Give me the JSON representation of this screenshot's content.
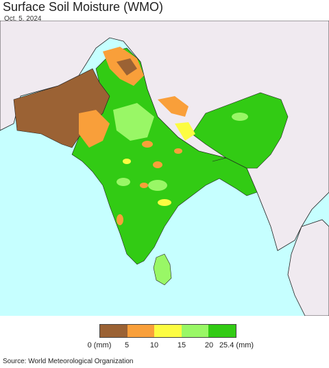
{
  "title": "Surface Soil Moisture (WMO)",
  "date": "Oct. 5, 2024",
  "source": "Source: World Meteorological Organization",
  "legend": {
    "colors": [
      "#9b6234",
      "#f99f3a",
      "#fcfc41",
      "#99f766",
      "#32cb14"
    ],
    "ticks": [
      "0 (mm)",
      "5",
      "10",
      "15",
      "20",
      "25.4 (mm)"
    ]
  },
  "map_colors": {
    "ocean": "#c6ffff",
    "land_outside": "#f0eaf0",
    "border": "#222222"
  }
}
